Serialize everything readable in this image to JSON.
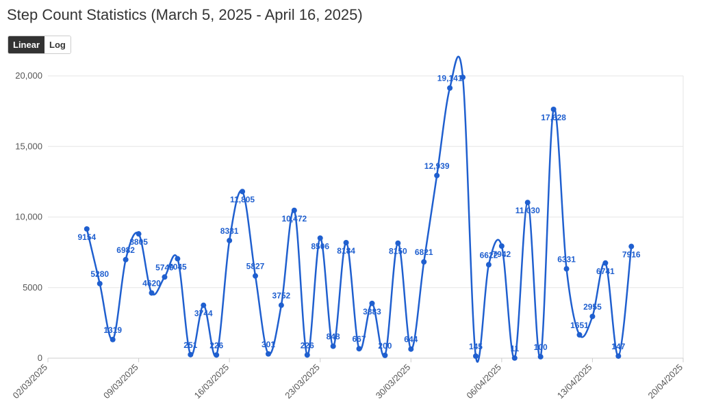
{
  "title": "Step Count Statistics (March 5, 2025 - April 16, 2025)",
  "controls": {
    "linear_label": "Linear",
    "log_label": "Log",
    "active": "linear"
  },
  "colors": {
    "line": "#1f5fcf",
    "grid": "#e6e6e6",
    "axis": "#cccccc",
    "label": "#1f5fcf"
  },
  "chart_data": {
    "type": "line",
    "title": "Step Count Statistics (March 5, 2025 - April 16, 2025)",
    "xlabel": "",
    "ylabel": "",
    "ylim": [
      0,
      20000
    ],
    "xlim": [
      "2025-03-02",
      "2025-04-20"
    ],
    "y_ticks": [
      0,
      5000,
      10000,
      15000,
      20000
    ],
    "y_tick_labels": [
      "0",
      "5000",
      "10,000",
      "15,000",
      "20,000"
    ],
    "x_ticks": [
      "2025-03-02",
      "2025-03-09",
      "2025-03-16",
      "2025-03-23",
      "2025-03-30",
      "2025-04-06",
      "2025-04-13",
      "2025-04-20"
    ],
    "x_tick_labels": [
      "02/03/2025",
      "09/03/2025",
      "16/03/2025",
      "23/03/2025",
      "30/03/2025",
      "06/04/2025",
      "13/04/2025",
      "20/04/2025"
    ],
    "grid": true,
    "legend": "none",
    "series": [
      {
        "points": [
          {
            "x": "2025-03-05",
            "y": 9154,
            "label": "9154"
          },
          {
            "x": "2025-03-06",
            "y": 5280,
            "label": "5280"
          },
          {
            "x": "2025-03-07",
            "y": 1319,
            "label": "1319"
          },
          {
            "x": "2025-03-08",
            "y": 6982,
            "label": "6982"
          },
          {
            "x": "2025-03-09",
            "y": 8805,
            "label": "8805"
          },
          {
            "x": "2025-03-10",
            "y": 4620,
            "label": "4620"
          },
          {
            "x": "2025-03-11",
            "y": 5749,
            "label": "5749"
          },
          {
            "x": "2025-03-12",
            "y": 7045,
            "label": "7045"
          },
          {
            "x": "2025-03-13",
            "y": 251,
            "label": "251"
          },
          {
            "x": "2025-03-14",
            "y": 3744,
            "label": "3744"
          },
          {
            "x": "2025-03-15",
            "y": 226,
            "label": "226"
          },
          {
            "x": "2025-03-16",
            "y": 8331,
            "label": "8331"
          },
          {
            "x": "2025-03-17",
            "y": 11805,
            "label": "11,805"
          },
          {
            "x": "2025-03-18",
            "y": 5827,
            "label": "5827"
          },
          {
            "x": "2025-03-19",
            "y": 301,
            "label": "301"
          },
          {
            "x": "2025-03-20",
            "y": 3752,
            "label": "3752"
          },
          {
            "x": "2025-03-21",
            "y": 10472,
            "label": "10,472"
          },
          {
            "x": "2025-03-22",
            "y": 226,
            "label": "226"
          },
          {
            "x": "2025-03-23",
            "y": 8506,
            "label": "8506"
          },
          {
            "x": "2025-03-24",
            "y": 848,
            "label": "848"
          },
          {
            "x": "2025-03-25",
            "y": 8184,
            "label": "8184"
          },
          {
            "x": "2025-03-26",
            "y": 667,
            "label": "667"
          },
          {
            "x": "2025-03-27",
            "y": 3883,
            "label": "3883"
          },
          {
            "x": "2025-03-28",
            "y": 200,
            "label": "200"
          },
          {
            "x": "2025-03-29",
            "y": 8150,
            "label": "8150"
          },
          {
            "x": "2025-03-30",
            "y": 644,
            "label": "644"
          },
          {
            "x": "2025-03-31",
            "y": 6821,
            "label": "6821"
          },
          {
            "x": "2025-04-01",
            "y": 12939,
            "label": "12,939"
          },
          {
            "x": "2025-04-02",
            "y": 19141,
            "label": "19,141"
          },
          {
            "x": "2025-04-03",
            "y": 19900,
            "label": ""
          },
          {
            "x": "2025-04-04",
            "y": 145,
            "label": "145"
          },
          {
            "x": "2025-04-05",
            "y": 6622,
            "label": "6622"
          },
          {
            "x": "2025-04-06",
            "y": 7942,
            "label": "7942"
          },
          {
            "x": "2025-04-07",
            "y": 11,
            "label": "11"
          },
          {
            "x": "2025-04-08",
            "y": 11030,
            "label": "11,030"
          },
          {
            "x": "2025-04-09",
            "y": 100,
            "label": "100"
          },
          {
            "x": "2025-04-10",
            "y": 17628,
            "label": "17,628"
          },
          {
            "x": "2025-04-11",
            "y": 6331,
            "label": "6331"
          },
          {
            "x": "2025-04-12",
            "y": 1651,
            "label": "1651"
          },
          {
            "x": "2025-04-13",
            "y": 2955,
            "label": "2955"
          },
          {
            "x": "2025-04-14",
            "y": 6741,
            "label": "6741"
          },
          {
            "x": "2025-04-15",
            "y": 147,
            "label": "147"
          },
          {
            "x": "2025-04-16",
            "y": 7916,
            "label": "7916"
          }
        ]
      }
    ]
  }
}
